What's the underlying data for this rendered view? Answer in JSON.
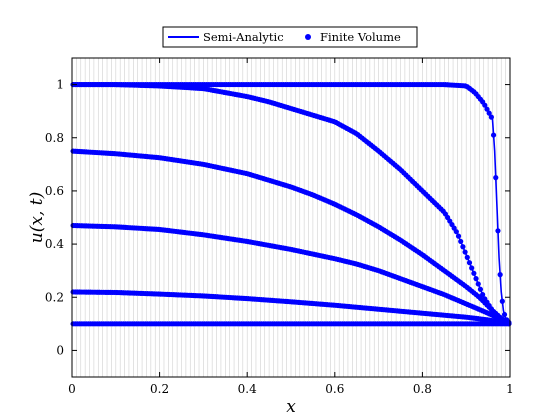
{
  "chart_data": {
    "type": "line",
    "title": "",
    "xlabel": "x",
    "ylabel": "u(x, t)",
    "xlim": [
      0,
      1
    ],
    "ylim": [
      -0.1,
      1.1
    ],
    "xticks": [
      0,
      0.2,
      0.4,
      0.6,
      0.8,
      1
    ],
    "xtick_labels": [
      "0",
      "0.2",
      "0.4",
      "0.6",
      "0.8",
      "1"
    ],
    "yticks": [
      0,
      0.2,
      0.4,
      0.6,
      0.8,
      1
    ],
    "ytick_labels": [
      "0",
      "0.2",
      "0.4",
      "0.6",
      "0.8",
      "1"
    ],
    "grid": "vertical",
    "legend_position": "top-center",
    "legend": [
      {
        "label": "Semi-Analytic",
        "kind": "line",
        "color": "#0000ff"
      },
      {
        "label": "Finite Volume",
        "kind": "marker",
        "color": "#0000ff"
      }
    ],
    "line_color": "#0000ff",
    "marker_color": "#0000ff",
    "series": [
      {
        "x": [
          0,
          0.1,
          0.2,
          0.3,
          0.4,
          0.5,
          0.6,
          0.7,
          0.8,
          0.85,
          0.9,
          0.92,
          0.94,
          0.95,
          0.96,
          0.965,
          0.97,
          0.975,
          0.98,
          0.985,
          0.99,
          1.0
        ],
        "y": [
          1.0,
          1.0,
          1.0,
          1.0,
          1.0,
          1.0,
          1.0,
          1.0,
          1.0,
          1.0,
          0.995,
          0.97,
          0.93,
          0.9,
          0.87,
          0.75,
          0.55,
          0.35,
          0.22,
          0.15,
          0.12,
          0.1
        ]
      },
      {
        "x": [
          0,
          0.1,
          0.2,
          0.3,
          0.35,
          0.4,
          0.45,
          0.5,
          0.55,
          0.6,
          0.65,
          0.7,
          0.75,
          0.8,
          0.85,
          0.88,
          0.9,
          0.92,
          0.94,
          0.96,
          0.98,
          1.0
        ],
        "y": [
          1.0,
          1.0,
          0.995,
          0.985,
          0.97,
          0.955,
          0.935,
          0.91,
          0.885,
          0.86,
          0.815,
          0.75,
          0.68,
          0.6,
          0.52,
          0.44,
          0.36,
          0.28,
          0.2,
          0.15,
          0.12,
          0.1
        ]
      },
      {
        "x": [
          0,
          0.1,
          0.2,
          0.3,
          0.4,
          0.45,
          0.5,
          0.55,
          0.6,
          0.65,
          0.7,
          0.75,
          0.8,
          0.85,
          0.9,
          0.93,
          0.96,
          0.98,
          1.0
        ],
        "y": [
          0.75,
          0.74,
          0.725,
          0.7,
          0.665,
          0.64,
          0.615,
          0.585,
          0.55,
          0.51,
          0.465,
          0.415,
          0.36,
          0.3,
          0.24,
          0.2,
          0.15,
          0.12,
          0.1
        ]
      },
      {
        "x": [
          0,
          0.1,
          0.2,
          0.3,
          0.4,
          0.5,
          0.6,
          0.65,
          0.7,
          0.75,
          0.8,
          0.85,
          0.9,
          0.95,
          1.0
        ],
        "y": [
          0.47,
          0.465,
          0.455,
          0.435,
          0.41,
          0.38,
          0.345,
          0.325,
          0.3,
          0.27,
          0.24,
          0.21,
          0.175,
          0.14,
          0.1
        ]
      },
      {
        "x": [
          0,
          0.1,
          0.2,
          0.3,
          0.4,
          0.5,
          0.6,
          0.7,
          0.8,
          0.9,
          0.95,
          1.0
        ],
        "y": [
          0.22,
          0.218,
          0.212,
          0.205,
          0.195,
          0.183,
          0.17,
          0.155,
          0.14,
          0.125,
          0.115,
          0.1
        ]
      },
      {
        "x": [
          0,
          0.2,
          0.4,
          0.6,
          0.8,
          1.0
        ],
        "y": [
          0.1,
          0.1,
          0.1,
          0.1,
          0.1,
          0.1
        ]
      }
    ]
  }
}
